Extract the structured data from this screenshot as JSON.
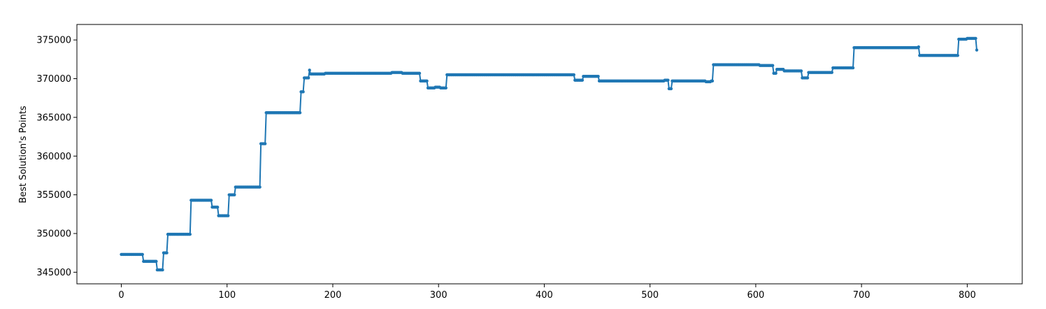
{
  "chart_data": {
    "type": "line",
    "title": "",
    "xlabel": "",
    "ylabel": "Best Solution's Points",
    "xlim": [
      -42,
      852
    ],
    "ylim": [
      343500,
      377000
    ],
    "xticks": [
      0,
      100,
      200,
      300,
      400,
      500,
      600,
      700,
      800
    ],
    "yticks": [
      345000,
      350000,
      355000,
      360000,
      365000,
      370000,
      375000
    ],
    "grid": false,
    "legend": "none",
    "series": [
      {
        "color": "#1f77b4",
        "marker": "circle",
        "steps": [
          [
            0,
            347300
          ],
          [
            21,
            346400
          ],
          [
            34,
            345300
          ],
          [
            40,
            347500
          ],
          [
            44,
            349900
          ],
          [
            66,
            354300
          ],
          [
            86,
            353400
          ],
          [
            92,
            352300
          ],
          [
            102,
            355000
          ],
          [
            108,
            356000
          ],
          [
            132,
            361600
          ],
          [
            137,
            365600
          ],
          [
            170,
            368300
          ],
          [
            173,
            370100
          ],
          [
            178,
            371100
          ],
          [
            179,
            370600
          ],
          [
            193,
            370700
          ],
          [
            256,
            370800
          ],
          [
            266,
            370700
          ],
          [
            283,
            369700
          ],
          [
            290,
            368800
          ],
          [
            297,
            368900
          ],
          [
            302,
            368800
          ],
          [
            308,
            370500
          ],
          [
            429,
            369800
          ],
          [
            437,
            370300
          ],
          [
            452,
            369700
          ],
          [
            514,
            369800
          ],
          [
            518,
            368700
          ],
          [
            521,
            369700
          ],
          [
            553,
            369600
          ],
          [
            558,
            369700
          ],
          [
            560,
            371800
          ],
          [
            604,
            371700
          ],
          [
            617,
            370700
          ],
          [
            620,
            371200
          ],
          [
            627,
            371000
          ],
          [
            644,
            370100
          ],
          [
            650,
            370800
          ],
          [
            673,
            371400
          ],
          [
            693,
            374000
          ],
          [
            754,
            374100
          ],
          [
            755,
            373000
          ],
          [
            792,
            375100
          ],
          [
            800,
            375200
          ],
          [
            809,
            373700
          ]
        ]
      }
    ]
  }
}
